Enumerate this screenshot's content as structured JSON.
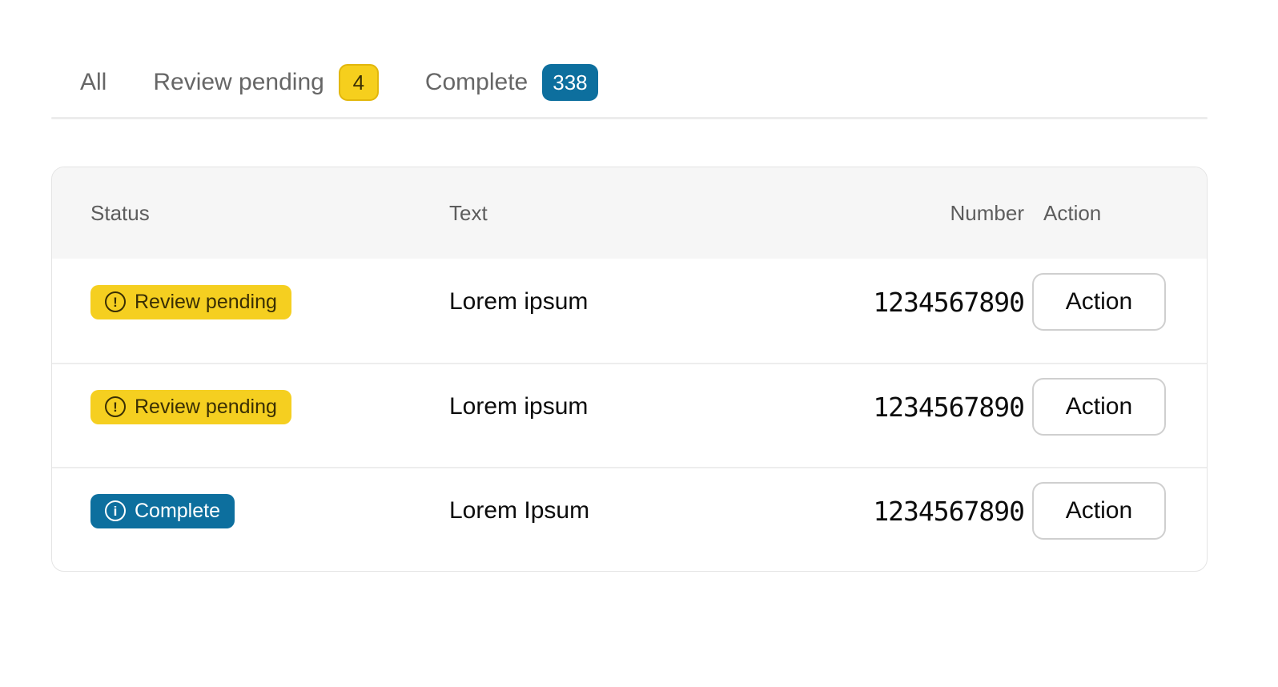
{
  "tabs": {
    "items": [
      {
        "label": "All"
      },
      {
        "label": "Review pending",
        "count": "4",
        "variant": "yellow"
      },
      {
        "label": "Complete",
        "count": "338",
        "variant": "blue"
      }
    ]
  },
  "table": {
    "columns": {
      "status": "Status",
      "text": "Text",
      "number": "Number",
      "action": "Action"
    },
    "rows": [
      {
        "status": "Review pending",
        "variant": "pending",
        "icon": "exclamation-circle-icon",
        "icon_glyph": "!",
        "text": "Lorem ipsum",
        "number": "1234567890",
        "action_label": "Action"
      },
      {
        "status": "Review pending",
        "variant": "pending",
        "icon": "exclamation-circle-icon",
        "icon_glyph": "!",
        "text": "Lorem ipsum",
        "number": "1234567890",
        "action_label": "Action"
      },
      {
        "status": "Complete",
        "variant": "complete",
        "icon": "info-circle-icon",
        "icon_glyph": "i",
        "text": "Lorem Ipsum",
        "number": "1234567890",
        "action_label": "Action"
      }
    ]
  },
  "colors": {
    "pending_yellow": "#f5cf20",
    "pending_text": "#3a2f04",
    "complete_blue": "#0d6f9e",
    "count_yellow_border": "#e2b70c",
    "header_bg": "#f6f6f6",
    "divider": "#ececec"
  }
}
